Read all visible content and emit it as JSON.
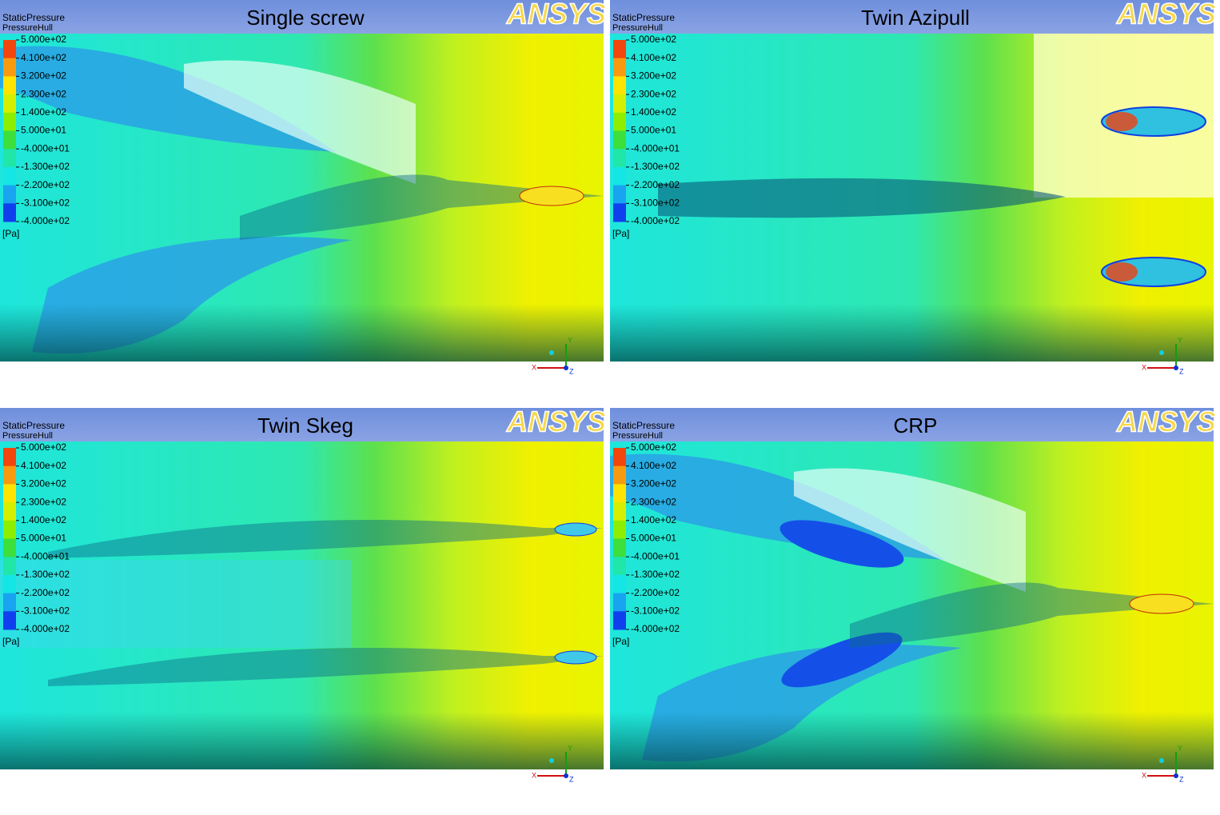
{
  "panels": [
    {
      "title": "Single screw",
      "variable": "StaticPressure",
      "location": "PressureHull",
      "legend": [
        "5.000e+02",
        "4.100e+02",
        "3.200e+02",
        "2.300e+02",
        "1.400e+02",
        "5.000e+01",
        "-4.000e+01",
        "-1.300e+02",
        "-2.200e+02",
        "-3.100e+02",
        "-4.000e+02"
      ],
      "unit": "[Pa]",
      "logo": "ANSYS",
      "axes": [
        "X",
        "Y",
        "Z"
      ]
    },
    {
      "title": "Twin Azipull",
      "variable": "StaticPressure",
      "location": "PressureHull",
      "legend": [
        "5.000e+02",
        "4.100e+02",
        "3.200e+02",
        "2.300e+02",
        "1.400e+02",
        "5.000e+01",
        "-4.000e+01",
        "-1.300e+02",
        "-2.200e+02",
        "-3.100e+02",
        "-4.000e+02"
      ],
      "unit": "[Pa]",
      "logo": "ANSYS",
      "axes": [
        "X",
        "Y",
        "Z"
      ]
    },
    {
      "title": "Twin Skeg",
      "variable": "StaticPressure",
      "location": "PressureHull",
      "legend": [
        "5.000e+02",
        "4.100e+02",
        "3.200e+02",
        "2.300e+02",
        "1.400e+02",
        "5.000e+01",
        "-4.000e+01",
        "-1.300e+02",
        "-2.200e+02",
        "-3.100e+02",
        "-4.000e+02"
      ],
      "unit": "[Pa]",
      "logo": "ANSYS",
      "axes": [
        "X",
        "Y",
        "Z"
      ]
    },
    {
      "title": "CRP",
      "variable": "StaticPressure",
      "location": "PressureHull",
      "legend": [
        "5.000e+02",
        "4.100e+02",
        "3.200e+02",
        "2.300e+02",
        "1.400e+02",
        "5.000e+01",
        "-4.000e+01",
        "-1.300e+02",
        "-2.200e+02",
        "-3.100e+02",
        "-4.000e+02"
      ],
      "unit": "[Pa]",
      "logo": "ANSYS",
      "axes": [
        "X",
        "Y",
        "Z"
      ]
    }
  ]
}
